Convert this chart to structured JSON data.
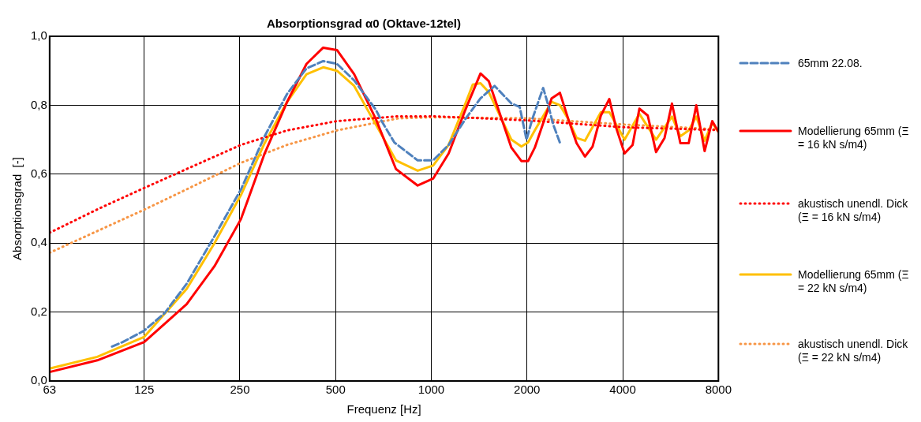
{
  "chart_data": {
    "type": "line",
    "title": "Absorptionsgrad α0 (Oktave-12tel)",
    "xlabel": "Frequenz [Hz]",
    "ylabel": "Absorptionsgrad  [-]",
    "log": "x",
    "xlim": [
      63,
      8000
    ],
    "xticks": [
      63,
      125,
      250,
      500,
      1000,
      2000,
      4000,
      8000
    ],
    "ylim": [
      0,
      1
    ],
    "yticks": [
      {
        "value": 0,
        "label": "0,0"
      },
      {
        "value": 0.2,
        "label": "0,2"
      },
      {
        "value": 0.4,
        "label": "0,4"
      },
      {
        "value": 0.6,
        "label": "0,6"
      },
      {
        "value": 0.8,
        "label": "0,8"
      },
      {
        "value": 1,
        "label": "1,0"
      }
    ],
    "grid": true,
    "legend": "right",
    "marker": "none",
    "series": [
      {
        "name": "65mm 22.08.",
        "color": "#4f81bd",
        "line_style": "dashed",
        "x": [
          99,
          107,
          125,
          145,
          170,
          208,
          252,
          299,
          352,
          405,
          457,
          505,
          572,
          669,
          698,
          765,
          838,
          906,
          975,
          1013,
          1134,
          1280,
          1428,
          1582,
          1786,
          1897,
          1993,
          2078,
          2248,
          2316,
          2418,
          2553
        ],
        "values": [
          0.1,
          0.113,
          0.146,
          0.197,
          0.282,
          0.42,
          0.556,
          0.71,
          0.833,
          0.907,
          0.928,
          0.92,
          0.872,
          0.787,
          0.754,
          0.692,
          0.664,
          0.64,
          0.64,
          0.64,
          0.685,
          0.76,
          0.82,
          0.856,
          0.805,
          0.795,
          0.7,
          0.76,
          0.85,
          0.81,
          0.744,
          0.685
        ]
      },
      {
        "name": "Modellierung 65mm (Ξ = 16 kN s/m4)",
        "color": "#ff0000",
        "line_style": "solid",
        "x": [
          63,
          89,
          125,
          170,
          208,
          252,
          299,
          352,
          405,
          457,
          505,
          572,
          669,
          774,
          906,
          1013,
          1134,
          1280,
          1428,
          1516,
          1786,
          1920,
          2016,
          2116,
          2390,
          2538,
          2696,
          2864,
          3043,
          3215,
          3414,
          3630,
          3810,
          4054,
          4297,
          4513,
          4795,
          5093,
          5414,
          5714,
          6073,
          6451,
          6817,
          7239,
          7648,
          8000
        ],
        "values": [
          0.026,
          0.06,
          0.113,
          0.223,
          0.333,
          0.47,
          0.66,
          0.81,
          0.92,
          0.967,
          0.96,
          0.89,
          0.76,
          0.615,
          0.567,
          0.587,
          0.66,
          0.787,
          0.892,
          0.87,
          0.677,
          0.638,
          0.638,
          0.677,
          0.82,
          0.836,
          0.76,
          0.69,
          0.651,
          0.68,
          0.77,
          0.818,
          0.736,
          0.66,
          0.685,
          0.79,
          0.77,
          0.664,
          0.705,
          0.805,
          0.69,
          0.69,
          0.8,
          0.667,
          0.754,
          0.723
        ]
      },
      {
        "name": "akustisch unendl. Dick (Ξ = 16 kN s/m4)",
        "color": "#ff0000",
        "line_style": "dotted",
        "x": [
          63,
          90,
          125,
          170,
          252,
          352,
          505,
          788,
          1013,
          2016,
          4054,
          8000
        ],
        "values": [
          0.43,
          0.5,
          0.56,
          0.615,
          0.685,
          0.727,
          0.754,
          0.768,
          0.768,
          0.756,
          0.736,
          0.728
        ]
      },
      {
        "name": "Modellierung 65mm (Ξ = 22 kN s/m4)",
        "color": "#ffc000",
        "line_style": "solid",
        "x": [
          63,
          89,
          125,
          170,
          208,
          252,
          299,
          352,
          405,
          457,
          505,
          572,
          669,
          774,
          906,
          1013,
          1134,
          1280,
          1350,
          1428,
          1516,
          1786,
          1920,
          2016,
          2116,
          2390,
          2538,
          2696,
          2864,
          3043,
          3414,
          3630,
          4054,
          4513,
          5093,
          5714,
          6073,
          6451,
          6817,
          7239,
          7648,
          8000
        ],
        "values": [
          0.036,
          0.07,
          0.128,
          0.267,
          0.4,
          0.54,
          0.69,
          0.81,
          0.89,
          0.91,
          0.9,
          0.856,
          0.744,
          0.64,
          0.61,
          0.625,
          0.685,
          0.805,
          0.86,
          0.864,
          0.838,
          0.7,
          0.68,
          0.692,
          0.727,
          0.81,
          0.8,
          0.76,
          0.705,
          0.697,
          0.78,
          0.78,
          0.7,
          0.775,
          0.7,
          0.767,
          0.71,
          0.727,
          0.767,
          0.697,
          0.749,
          0.723
        ]
      },
      {
        "name": "akustisch unendl. Dick  (Ξ = 22 kN s/m4)",
        "color": "#f79646",
        "line_style": "dotted",
        "x": [
          63,
          125,
          170,
          252,
          352,
          505,
          788,
          1013,
          2016,
          4054,
          8000
        ],
        "values": [
          0.372,
          0.497,
          0.556,
          0.633,
          0.685,
          0.727,
          0.762,
          0.765,
          0.762,
          0.744,
          0.73
        ]
      }
    ]
  }
}
